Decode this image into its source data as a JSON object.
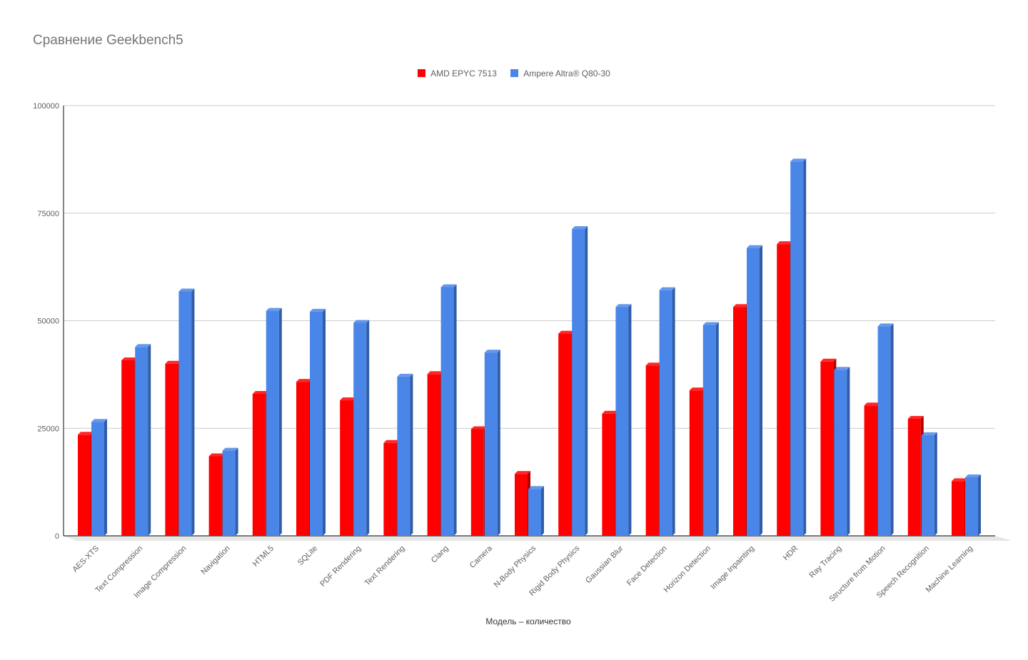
{
  "chart_data": {
    "type": "bar",
    "title": "Сравнение Geekbench5",
    "xlabel": "Модель – количество",
    "ylabel": "",
    "ylim": [
      0,
      100000
    ],
    "yticks": [
      "0",
      "25000",
      "50000",
      "75000",
      "100000"
    ],
    "legend_position": "top-center",
    "grid": true,
    "categories": [
      "AES-XTS",
      "Text Compression",
      "Image Compression",
      "Navigation",
      "HTML5",
      "SQLite",
      "PDF Rendering",
      "Text Rendering",
      "Clang",
      "Camera",
      "N-Body Physics",
      "Rigid Body Physics",
      "Gaussian Blur",
      "Face Detection",
      "Horizon Detection",
      "Image Inpainting",
      "HDR",
      "Ray Tracing",
      "Structure from Motion",
      "Speech Recognition",
      "Machine Learning"
    ],
    "series": [
      {
        "name": "AMD EPYC 7513",
        "color": "#ff0000",
        "values": [
          23500,
          40800,
          40000,
          18500,
          33000,
          35800,
          31500,
          21600,
          37600,
          24800,
          14400,
          47000,
          28400,
          39600,
          33800,
          53200,
          67800,
          40500,
          30300,
          27200,
          12700
        ]
      },
      {
        "name": "Ampere Altra® Q80-30",
        "color": "#4a86e8",
        "values": [
          26500,
          43900,
          56800,
          19800,
          52300,
          52100,
          49500,
          37000,
          57800,
          42600,
          10900,
          71300,
          53200,
          57100,
          49000,
          66900,
          87000,
          38600,
          48700,
          23400,
          13600
        ]
      }
    ]
  }
}
